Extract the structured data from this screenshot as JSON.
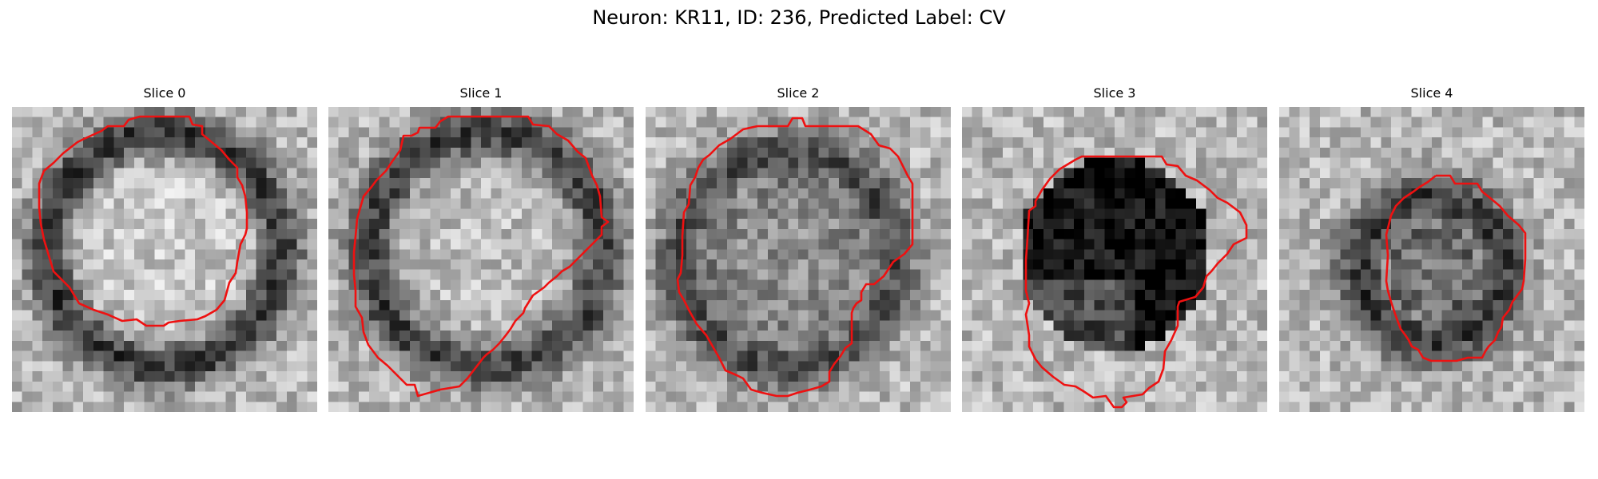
{
  "figure": {
    "title": "Neuron: KR11, ID: 236, Predicted Label: CV"
  },
  "panels": [
    {
      "title": "Slice 0"
    },
    {
      "title": "Slice 1"
    },
    {
      "title": "Slice 2"
    },
    {
      "title": "Slice 3"
    },
    {
      "title": "Slice 4"
    }
  ],
  "colors": {
    "contour": "#ee1111",
    "colormap": "gray"
  }
}
